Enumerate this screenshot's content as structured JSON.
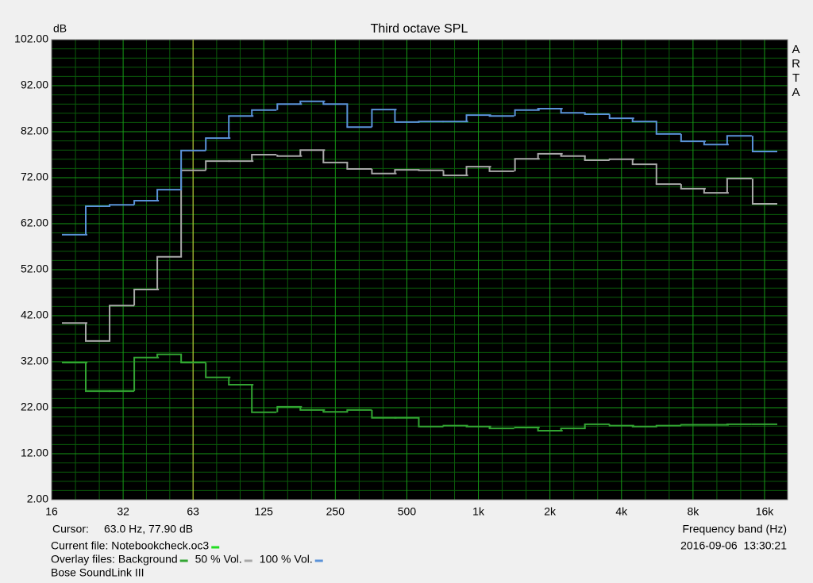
{
  "chart_data": {
    "type": "line",
    "step": true,
    "title": "Third octave SPL",
    "y_label": "dB",
    "x_label": "Frequency band (Hz)",
    "watermark": "ARTA",
    "log_x": true,
    "grid": true,
    "xlim": [
      16,
      20000
    ],
    "xticks": [
      16,
      32,
      63,
      125,
      250,
      500,
      {
        "value": 1000,
        "label": "1k"
      },
      {
        "value": 2000,
        "label": "2k"
      },
      {
        "value": 4000,
        "label": "4k"
      },
      {
        "value": 8000,
        "label": "8k"
      },
      {
        "value": 16000,
        "label": "16k"
      }
    ],
    "ylim": [
      2,
      102
    ],
    "yticks": [
      {
        "value": 2,
        "label": "2.00"
      },
      {
        "value": 12,
        "label": "12.00"
      },
      {
        "value": 22,
        "label": "22.00"
      },
      {
        "value": 32,
        "label": "32.00"
      },
      {
        "value": 42,
        "label": "42.00"
      },
      {
        "value": 52,
        "label": "52.00"
      },
      {
        "value": 62,
        "label": "62.00"
      },
      {
        "value": 72,
        "label": "72.00"
      },
      {
        "value": 82,
        "label": "82.00"
      },
      {
        "value": 92,
        "label": "92.00"
      },
      {
        "value": 102,
        "label": "102.00"
      }
    ],
    "x": [
      20,
      25,
      31.5,
      40,
      50,
      63,
      80,
      100,
      125,
      160,
      200,
      250,
      315,
      400,
      500,
      630,
      800,
      1000,
      1250,
      1600,
      2000,
      2500,
      3150,
      4000,
      5000,
      6300,
      8000,
      10000,
      12500,
      16000
    ],
    "series": [
      {
        "name": "Background",
        "color": "#33a533",
        "values": [
          31.8,
          25.6,
          25.6,
          32.9,
          33.6,
          31.8,
          28.6,
          27.0,
          21.0,
          22.2,
          21.5,
          21.1,
          21.5,
          19.8,
          19.8,
          17.9,
          18.1,
          17.9,
          17.5,
          17.7,
          17.0,
          17.5,
          18.4,
          18.1,
          17.9,
          18.1,
          18.3,
          18.3,
          18.4,
          18.4
        ]
      },
      {
        "name": "50 % Vol.",
        "color": "#a8a8a8",
        "values": [
          40.4,
          36.5,
          44.2,
          47.7,
          54.8,
          73.6,
          75.6,
          75.6,
          77.0,
          76.7,
          78.0,
          75.3,
          73.9,
          72.9,
          73.7,
          73.6,
          72.5,
          74.4,
          73.4,
          76.1,
          77.2,
          76.7,
          75.8,
          76.0,
          74.9,
          70.6,
          69.6,
          68.7,
          71.8,
          66.3
        ]
      },
      {
        "name": "100 % Vol.",
        "color": "#5a92d8",
        "values": [
          59.6,
          65.8,
          66.1,
          67.0,
          69.4,
          77.9,
          80.6,
          85.4,
          86.7,
          88.0,
          88.6,
          88.0,
          83.0,
          86.8,
          84.1,
          84.2,
          84.2,
          85.6,
          85.4,
          86.7,
          87.0,
          86.1,
          85.8,
          84.9,
          84.2,
          81.5,
          79.9,
          79.2,
          81.1,
          77.7
        ]
      }
    ],
    "cursor": {
      "label": "Cursor:",
      "readout": "63.0 Hz, 77.90 dB",
      "x": 63,
      "color": "#d8d840"
    },
    "current_file": {
      "label": "Current file: Notebookcheck.oc3",
      "color": "#22dd22"
    },
    "overlay_label": "Overlay files:",
    "timestamp": "2016-09-06  13:30:21",
    "device": "Bose SoundLink III"
  }
}
